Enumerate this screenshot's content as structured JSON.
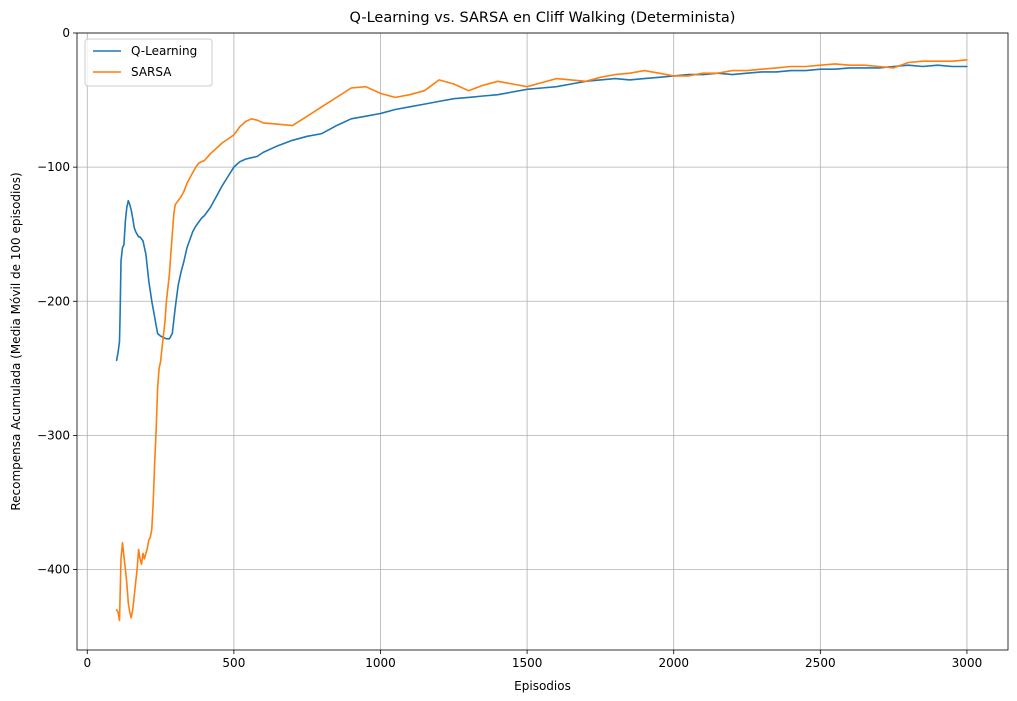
{
  "chart_data": {
    "type": "line",
    "title": "Q-Learning vs. SARSA en Cliff Walking (Determinista)",
    "xlabel": "Episodios",
    "ylabel": "Recompensa Acumulada (Media Móvil de 100 episodios)",
    "xlim": [
      -35,
      3140
    ],
    "ylim": [
      -460,
      0
    ],
    "xticks": [
      0,
      500,
      1000,
      1500,
      2000,
      2500,
      3000
    ],
    "yticks": [
      -400,
      -300,
      -200,
      -100,
      0
    ],
    "grid": true,
    "legend_position": "top-left",
    "series": [
      {
        "name": "Q-Learning",
        "color": "#1f77b4",
        "x": [
          100,
          105,
          110,
          112,
          115,
          120,
          125,
          130,
          135,
          140,
          145,
          150,
          155,
          160,
          165,
          170,
          175,
          180,
          190,
          200,
          210,
          220,
          230,
          240,
          250,
          260,
          270,
          280,
          290,
          300,
          310,
          320,
          330,
          340,
          350,
          360,
          370,
          380,
          390,
          400,
          420,
          440,
          460,
          480,
          500,
          520,
          540,
          560,
          580,
          600,
          650,
          700,
          750,
          800,
          850,
          900,
          950,
          1000,
          1050,
          1100,
          1150,
          1200,
          1250,
          1300,
          1350,
          1400,
          1450,
          1500,
          1550,
          1600,
          1650,
          1700,
          1750,
          1800,
          1850,
          1900,
          1950,
          2000,
          2050,
          2100,
          2150,
          2200,
          2250,
          2300,
          2350,
          2400,
          2450,
          2500,
          2550,
          2600,
          2650,
          2700,
          2750,
          2800,
          2850,
          2900,
          2950,
          3000
        ],
        "values": [
          -244,
          -238,
          -230,
          -210,
          -170,
          -160,
          -158,
          -140,
          -130,
          -125,
          -128,
          -132,
          -138,
          -145,
          -148,
          -150,
          -152,
          -152,
          -155,
          -165,
          -185,
          -200,
          -212,
          -224,
          -226,
          -227,
          -228,
          -228,
          -224,
          -205,
          -188,
          -178,
          -170,
          -160,
          -154,
          -148,
          -144,
          -141,
          -138,
          -136,
          -130,
          -122,
          -114,
          -107,
          -100,
          -96,
          -94,
          -93,
          -92,
          -89,
          -84,
          -80,
          -77,
          -75,
          -69,
          -64,
          -62,
          -60,
          -57,
          -55,
          -53,
          -51,
          -49,
          -48,
          -47,
          -46,
          -44,
          -42,
          -41,
          -40,
          -38,
          -36,
          -35,
          -34,
          -35,
          -34,
          -33,
          -32,
          -31,
          -31,
          -30,
          -31,
          -30,
          -29,
          -29,
          -28,
          -28,
          -27,
          -27,
          -26,
          -26,
          -26,
          -25,
          -24,
          -25,
          -24,
          -25,
          -25
        ]
      },
      {
        "name": "SARSA",
        "color": "#ff7f0e",
        "x": [
          100,
          105,
          110,
          115,
          120,
          125,
          130,
          135,
          140,
          145,
          150,
          155,
          160,
          165,
          170,
          175,
          180,
          185,
          190,
          195,
          200,
          205,
          210,
          215,
          220,
          225,
          230,
          235,
          240,
          245,
          250,
          255,
          260,
          265,
          270,
          275,
          280,
          285,
          290,
          295,
          300,
          310,
          320,
          330,
          340,
          350,
          360,
          370,
          380,
          400,
          420,
          440,
          460,
          480,
          500,
          520,
          540,
          560,
          580,
          600,
          650,
          700,
          750,
          800,
          850,
          900,
          950,
          1000,
          1050,
          1100,
          1150,
          1200,
          1250,
          1300,
          1350,
          1400,
          1450,
          1500,
          1550,
          1600,
          1650,
          1700,
          1750,
          1800,
          1850,
          1900,
          1950,
          2000,
          2050,
          2100,
          2150,
          2200,
          2250,
          2300,
          2350,
          2400,
          2450,
          2500,
          2550,
          2600,
          2650,
          2700,
          2750,
          2800,
          2850,
          2900,
          2950,
          3000
        ],
        "values": [
          -430,
          -432,
          -438,
          -392,
          -380,
          -390,
          -400,
          -410,
          -425,
          -432,
          -436,
          -430,
          -420,
          -410,
          -400,
          -385,
          -392,
          -396,
          -388,
          -392,
          -388,
          -384,
          -378,
          -376,
          -370,
          -350,
          -320,
          -295,
          -265,
          -250,
          -245,
          -235,
          -225,
          -215,
          -200,
          -190,
          -180,
          -165,
          -150,
          -135,
          -128,
          -125,
          -122,
          -118,
          -112,
          -108,
          -104,
          -100,
          -97,
          -95,
          -90,
          -86,
          -82,
          -79,
          -76,
          -70,
          -66,
          -64,
          -65,
          -67,
          -68,
          -69,
          -62,
          -55,
          -48,
          -41,
          -40,
          -45,
          -48,
          -46,
          -43,
          -35,
          -38,
          -43,
          -39,
          -36,
          -38,
          -40,
          -37,
          -34,
          -35,
          -36,
          -33,
          -31,
          -30,
          -28,
          -30,
          -32,
          -32,
          -30,
          -30,
          -28,
          -28,
          -27,
          -26,
          -25,
          -25,
          -24,
          -23,
          -24,
          -24,
          -25,
          -26,
          -22,
          -21,
          -21,
          -21,
          -20
        ]
      }
    ]
  }
}
